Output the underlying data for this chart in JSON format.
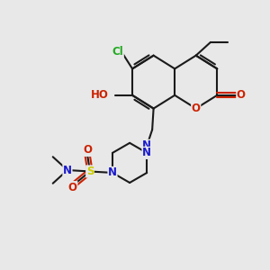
{
  "bg_color": "#e8e8e8",
  "bond_color": "#1a1a1a",
  "bond_width": 1.5,
  "atom_colors": {
    "O": "#cc2200",
    "N": "#1a1acc",
    "S": "#cccc00",
    "Cl": "#22aa22",
    "C": "#1a1a1a"
  },
  "font_size": 8.5,
  "fig_size": [
    3.0,
    3.0
  ],
  "dpi": 100
}
